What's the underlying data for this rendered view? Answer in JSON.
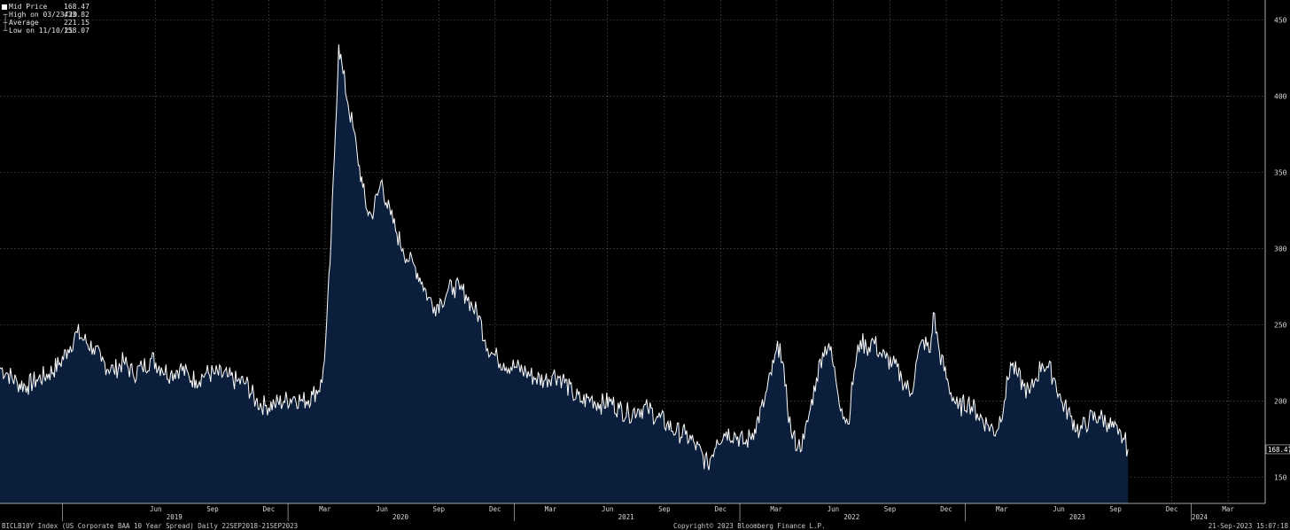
{
  "legend": {
    "rows": [
      {
        "label": "Mid Price",
        "value": "168.47"
      },
      {
        "label": "High on 03/23/20",
        "value": "433.82"
      },
      {
        "label": "Average",
        "value": "221.15"
      },
      {
        "label": "Low on 11/10/21",
        "value": "158.07"
      }
    ]
  },
  "footer": {
    "left": "BICLB10Y Index (US Corporate BAA 10 Year Spread)  Daily 22SEP2018-21SEP2023",
    "center": "Copyright© 2023 Bloomberg Finance L.P.",
    "right": "21-Sep-2023 15:07:18"
  },
  "colors": {
    "background": "#000000",
    "area_fill": "#0b1f3c",
    "line": "#ffffff",
    "grid": "#6a6a6a",
    "text": "#d8d8d8"
  },
  "chart_data": {
    "type": "area",
    "title": "",
    "xlabel": "",
    "ylabel": "",
    "x_range": [
      "2018-09-22",
      "2024-04-30"
    ],
    "ylim": [
      133,
      463
    ],
    "y_ticks": [
      150,
      200,
      250,
      300,
      350,
      400,
      450
    ],
    "last_value_label": "168.47",
    "grid": true,
    "x_month_ticks": [
      {
        "label": "Jun",
        "date": "2019-06-01"
      },
      {
        "label": "Sep",
        "date": "2019-09-01"
      },
      {
        "label": "Dec",
        "date": "2019-12-01"
      },
      {
        "label": "Mar",
        "date": "2020-03-01"
      },
      {
        "label": "Jun",
        "date": "2020-06-01"
      },
      {
        "label": "Sep",
        "date": "2020-09-01"
      },
      {
        "label": "Dec",
        "date": "2020-12-01"
      },
      {
        "label": "Mar",
        "date": "2021-03-01"
      },
      {
        "label": "Jun",
        "date": "2021-06-01"
      },
      {
        "label": "Sep",
        "date": "2021-09-01"
      },
      {
        "label": "Dec",
        "date": "2021-12-01"
      },
      {
        "label": "Mar",
        "date": "2022-03-01"
      },
      {
        "label": "Jun",
        "date": "2022-06-01"
      },
      {
        "label": "Sep",
        "date": "2022-09-01"
      },
      {
        "label": "Dec",
        "date": "2022-12-01"
      },
      {
        "label": "Mar",
        "date": "2023-03-01"
      },
      {
        "label": "Jun",
        "date": "2023-06-01"
      },
      {
        "label": "Sep",
        "date": "2023-09-01"
      },
      {
        "label": "Dec",
        "date": "2023-12-01"
      },
      {
        "label": "Mar",
        "date": "2024-03-01"
      }
    ],
    "x_year_ticks": [
      {
        "label": "2019",
        "date": "2019-07-01"
      },
      {
        "label": "2020",
        "date": "2020-07-01"
      },
      {
        "label": "2021",
        "date": "2021-07-01"
      },
      {
        "label": "2022",
        "date": "2022-07-01"
      },
      {
        "label": "2023",
        "date": "2023-07-01"
      },
      {
        "label": "2024",
        "date": "2024-01-15"
      }
    ],
    "series": [
      {
        "points": [
          [
            "2018-09-22",
            222
          ],
          [
            "2018-10-05",
            218
          ],
          [
            "2018-10-20",
            212
          ],
          [
            "2018-11-05",
            210
          ],
          [
            "2018-11-20",
            214
          ],
          [
            "2018-12-10",
            218
          ],
          [
            "2018-12-28",
            225
          ],
          [
            "2019-01-10",
            234
          ],
          [
            "2019-01-25",
            245
          ],
          [
            "2019-02-05",
            240
          ],
          [
            "2019-02-20",
            235
          ],
          [
            "2019-03-05",
            226
          ],
          [
            "2019-03-25",
            220
          ],
          [
            "2019-04-10",
            226
          ],
          [
            "2019-04-25",
            218
          ],
          [
            "2019-05-10",
            222
          ],
          [
            "2019-05-25",
            228
          ],
          [
            "2019-06-10",
            222
          ],
          [
            "2019-06-25",
            218
          ],
          [
            "2019-07-10",
            222
          ],
          [
            "2019-07-25",
            216
          ],
          [
            "2019-08-05",
            214
          ],
          [
            "2019-08-20",
            218
          ],
          [
            "2019-09-05",
            218
          ],
          [
            "2019-09-25",
            216
          ],
          [
            "2019-10-10",
            213
          ],
          [
            "2019-10-25",
            212
          ],
          [
            "2019-11-10",
            200
          ],
          [
            "2019-11-25",
            197
          ],
          [
            "2019-12-10",
            198
          ],
          [
            "2019-12-25",
            200
          ],
          [
            "2020-01-10",
            203
          ],
          [
            "2020-01-25",
            200
          ],
          [
            "2020-02-10",
            204
          ],
          [
            "2020-02-25",
            212
          ],
          [
            "2020-03-02",
            240
          ],
          [
            "2020-03-09",
            290
          ],
          [
            "2020-03-16",
            360
          ],
          [
            "2020-03-23",
            433.82
          ],
          [
            "2020-03-30",
            415
          ],
          [
            "2020-04-07",
            395
          ],
          [
            "2020-04-15",
            380
          ],
          [
            "2020-04-22",
            362
          ],
          [
            "2020-05-01",
            340
          ],
          [
            "2020-05-08",
            325
          ],
          [
            "2020-05-15",
            322
          ],
          [
            "2020-05-25",
            335
          ],
          [
            "2020-06-01",
            345
          ],
          [
            "2020-06-08",
            330
          ],
          [
            "2020-06-15",
            322
          ],
          [
            "2020-06-25",
            310
          ],
          [
            "2020-07-05",
            300
          ],
          [
            "2020-07-15",
            292
          ],
          [
            "2020-07-25",
            288
          ],
          [
            "2020-08-05",
            278
          ],
          [
            "2020-08-15",
            268
          ],
          [
            "2020-08-25",
            262
          ],
          [
            "2020-09-05",
            266
          ],
          [
            "2020-09-15",
            272
          ],
          [
            "2020-09-25",
            275
          ],
          [
            "2020-10-05",
            273
          ],
          [
            "2020-10-15",
            270
          ],
          [
            "2020-10-25",
            262
          ],
          [
            "2020-11-05",
            256
          ],
          [
            "2020-11-15",
            240
          ],
          [
            "2020-11-25",
            232
          ],
          [
            "2020-12-05",
            228
          ],
          [
            "2020-12-15",
            225
          ],
          [
            "2021-01-05",
            222
          ],
          [
            "2021-01-20",
            219
          ],
          [
            "2021-02-05",
            215
          ],
          [
            "2021-02-20",
            214
          ],
          [
            "2021-03-05",
            218
          ],
          [
            "2021-03-20",
            215
          ],
          [
            "2021-04-05",
            205
          ],
          [
            "2021-04-20",
            200
          ],
          [
            "2021-05-05",
            202
          ],
          [
            "2021-05-20",
            198
          ],
          [
            "2021-06-05",
            200
          ],
          [
            "2021-06-20",
            195
          ],
          [
            "2021-07-05",
            192
          ],
          [
            "2021-07-20",
            195
          ],
          [
            "2021-08-05",
            195
          ],
          [
            "2021-08-20",
            190
          ],
          [
            "2021-09-05",
            185
          ],
          [
            "2021-09-20",
            180
          ],
          [
            "2021-10-05",
            178
          ],
          [
            "2021-10-20",
            172
          ],
          [
            "2021-11-10",
            158.07
          ],
          [
            "2021-11-25",
            175
          ],
          [
            "2021-12-10",
            180
          ],
          [
            "2021-12-25",
            178
          ],
          [
            "2022-01-10",
            172
          ],
          [
            "2022-01-25",
            182
          ],
          [
            "2022-02-10",
            200
          ],
          [
            "2022-02-25",
            225
          ],
          [
            "2022-03-07",
            238
          ],
          [
            "2022-03-15",
            210
          ],
          [
            "2022-03-25",
            180
          ],
          [
            "2022-04-05",
            170
          ],
          [
            "2022-04-15",
            175
          ],
          [
            "2022-04-25",
            195
          ],
          [
            "2022-05-05",
            215
          ],
          [
            "2022-05-15",
            232
          ],
          [
            "2022-05-25",
            238
          ],
          [
            "2022-06-05",
            215
          ],
          [
            "2022-06-15",
            195
          ],
          [
            "2022-06-25",
            185
          ],
          [
            "2022-07-05",
            220
          ],
          [
            "2022-07-15",
            240
          ],
          [
            "2022-07-25",
            235
          ],
          [
            "2022-08-05",
            240
          ],
          [
            "2022-08-15",
            232
          ],
          [
            "2022-08-25",
            228
          ],
          [
            "2022-09-05",
            225
          ],
          [
            "2022-09-20",
            215
          ],
          [
            "2022-10-05",
            205
          ],
          [
            "2022-10-15",
            228
          ],
          [
            "2022-10-25",
            240
          ],
          [
            "2022-11-05",
            232
          ],
          [
            "2022-11-10",
            258
          ],
          [
            "2022-11-20",
            232
          ],
          [
            "2022-12-05",
            210
          ],
          [
            "2022-12-20",
            195
          ],
          [
            "2023-01-05",
            200
          ],
          [
            "2023-01-20",
            192
          ],
          [
            "2023-02-05",
            185
          ],
          [
            "2023-02-20",
            180
          ],
          [
            "2023-03-05",
            200
          ],
          [
            "2023-03-15",
            225
          ],
          [
            "2023-03-25",
            218
          ],
          [
            "2023-04-05",
            210
          ],
          [
            "2023-04-15",
            205
          ],
          [
            "2023-04-25",
            215
          ],
          [
            "2023-05-05",
            225
          ],
          [
            "2023-05-15",
            222
          ],
          [
            "2023-05-25",
            215
          ],
          [
            "2023-06-05",
            200
          ],
          [
            "2023-06-20",
            190
          ],
          [
            "2023-07-05",
            180
          ],
          [
            "2023-07-20",
            188
          ],
          [
            "2023-08-05",
            190
          ],
          [
            "2023-08-20",
            186
          ],
          [
            "2023-09-05",
            178
          ],
          [
            "2023-09-15",
            175
          ],
          [
            "2023-09-21",
            168.47
          ]
        ]
      }
    ]
  }
}
